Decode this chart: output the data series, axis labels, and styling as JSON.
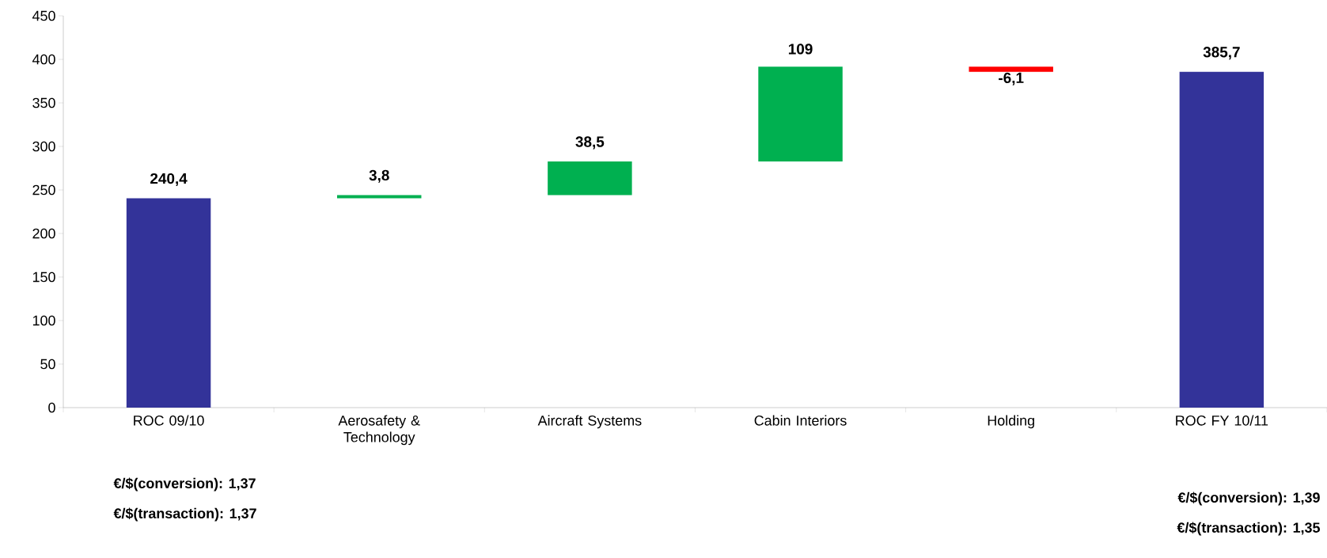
{
  "chart_data": {
    "type": "bar",
    "categories": [
      "ROC 09/10",
      "Aerosafety & Technology",
      "Aircraft Systems",
      "Cabin Interiors",
      "Holding",
      "ROC FY 10/11"
    ],
    "values": [
      240.4,
      3.8,
      38.5,
      109,
      -6.1,
      385.7
    ],
    "base": [
      0,
      240.4,
      244.2,
      282.7,
      391.7,
      0
    ],
    "colors": [
      "#333399",
      "#00b050",
      "#00b050",
      "#00b050",
      "#ff0000",
      "#333399"
    ],
    "value_labels": [
      "240,4",
      "3,8",
      "38,5",
      "109",
      "-6,1",
      "385,7"
    ],
    "ylim": [
      0,
      450
    ],
    "yticks": [
      0,
      50,
      100,
      150,
      200,
      250,
      300,
      350,
      400,
      450
    ],
    "grid": false,
    "annotations": [
      "€/$(conversion): 1,37",
      "€/$(transaction): 1,37",
      "€/$(conversion): 1,39",
      "€/$(transaction): 1,35"
    ]
  }
}
